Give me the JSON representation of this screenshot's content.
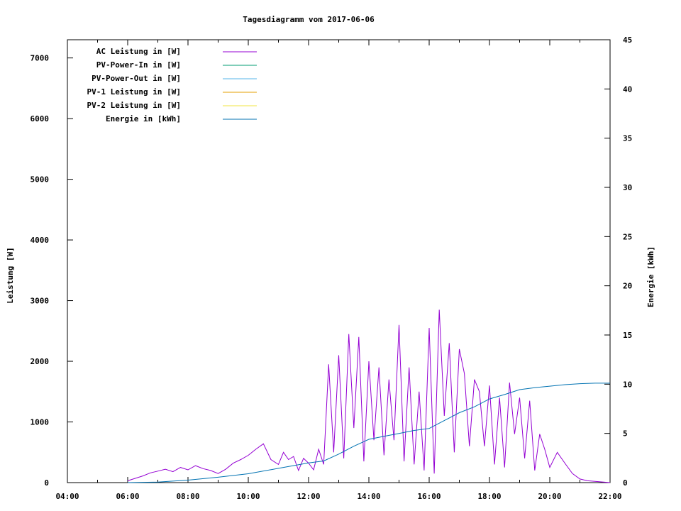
{
  "chart_data": {
    "type": "line",
    "title": "Tagesdiagramm vom 2017-06-06",
    "ylabel": "Leistung [W]",
    "y2label": "Energie [kWh]",
    "xlim": [
      "04:00",
      "22:00"
    ],
    "ylim": [
      0,
      7300
    ],
    "y2lim": [
      0,
      45
    ],
    "xticks": [
      "04:00",
      "06:00",
      "08:00",
      "10:00",
      "12:00",
      "14:00",
      "16:00",
      "18:00",
      "20:00",
      "22:00"
    ],
    "yticks": [
      "0",
      "1000",
      "2000",
      "3000",
      "4000",
      "5000",
      "6000",
      "7000"
    ],
    "y2ticks": [
      "0",
      "5",
      "10",
      "15",
      "20",
      "25",
      "30",
      "35",
      "40",
      "45"
    ],
    "grid": false,
    "legend_position": "top-left",
    "series": [
      {
        "name": "AC Leistung in [W]",
        "color": "#9400d3",
        "axis": "y",
        "x": [
          "06:00",
          "06:15",
          "06:30",
          "06:45",
          "07:00",
          "07:15",
          "07:30",
          "07:45",
          "08:00",
          "08:15",
          "08:30",
          "08:45",
          "09:00",
          "09:15",
          "09:30",
          "09:45",
          "10:00",
          "10:15",
          "10:30",
          "10:45",
          "11:00",
          "11:10",
          "11:20",
          "11:30",
          "11:40",
          "11:50",
          "12:00",
          "12:10",
          "12:20",
          "12:30",
          "12:40",
          "12:50",
          "13:00",
          "13:10",
          "13:20",
          "13:30",
          "13:40",
          "13:50",
          "14:00",
          "14:10",
          "14:20",
          "14:30",
          "14:40",
          "14:50",
          "15:00",
          "15:10",
          "15:20",
          "15:30",
          "15:40",
          "15:50",
          "16:00",
          "16:10",
          "16:20",
          "16:30",
          "16:40",
          "16:50",
          "17:00",
          "17:10",
          "17:20",
          "17:30",
          "17:40",
          "17:50",
          "18:00",
          "18:10",
          "18:20",
          "18:30",
          "18:40",
          "18:50",
          "19:00",
          "19:10",
          "19:20",
          "19:30",
          "19:40",
          "19:50",
          "20:00",
          "20:15",
          "20:30",
          "20:45",
          "21:00",
          "21:15",
          "21:30",
          "21:45",
          "22:00"
        ],
        "values": [
          30,
          70,
          110,
          160,
          190,
          220,
          180,
          250,
          210,
          280,
          230,
          200,
          150,
          220,
          320,
          380,
          450,
          550,
          640,
          380,
          300,
          500,
          380,
          430,
          200,
          400,
          320,
          210,
          550,
          300,
          1950,
          500,
          2100,
          400,
          2450,
          900,
          2400,
          350,
          2000,
          700,
          1900,
          450,
          1700,
          700,
          2600,
          350,
          1900,
          300,
          1500,
          200,
          2550,
          150,
          2850,
          1100,
          2300,
          500,
          2200,
          1800,
          600,
          1700,
          1500,
          600,
          1600,
          300,
          1400,
          250,
          1650,
          800,
          1400,
          400,
          1350,
          200,
          800,
          550,
          250,
          500,
          320,
          150,
          60,
          30,
          20,
          10,
          0
        ]
      },
      {
        "name": "PV-Power-In in [W]",
        "color": "#009e73",
        "axis": "y",
        "x": [],
        "values": []
      },
      {
        "name": "PV-Power-Out in [W]",
        "color": "#56b4e9",
        "axis": "y",
        "x": [],
        "values": []
      },
      {
        "name": "PV-1 Leistung in [W]",
        "color": "#e69f00",
        "axis": "y",
        "x": [],
        "values": []
      },
      {
        "name": "PV-2 Leistung in [W]",
        "color": "#f0e442",
        "axis": "y",
        "x": [],
        "values": []
      },
      {
        "name": "Energie in [kWh]",
        "color": "#0072b2",
        "axis": "y2",
        "x": [
          "06:00",
          "07:00",
          "08:00",
          "09:00",
          "10:00",
          "11:00",
          "12:00",
          "12:30",
          "13:00",
          "13:30",
          "14:00",
          "14:30",
          "15:00",
          "15:30",
          "16:00",
          "16:30",
          "17:00",
          "17:30",
          "18:00",
          "18:30",
          "19:00",
          "19:30",
          "20:00",
          "20:30",
          "21:00",
          "21:30",
          "22:00"
        ],
        "values": [
          0,
          0.05,
          0.25,
          0.55,
          0.9,
          1.45,
          2.0,
          2.2,
          2.9,
          3.7,
          4.4,
          4.7,
          5.0,
          5.3,
          5.5,
          6.3,
          7.1,
          7.7,
          8.5,
          8.95,
          9.45,
          9.65,
          9.8,
          9.95,
          10.05,
          10.1,
          10.1
        ]
      }
    ]
  }
}
